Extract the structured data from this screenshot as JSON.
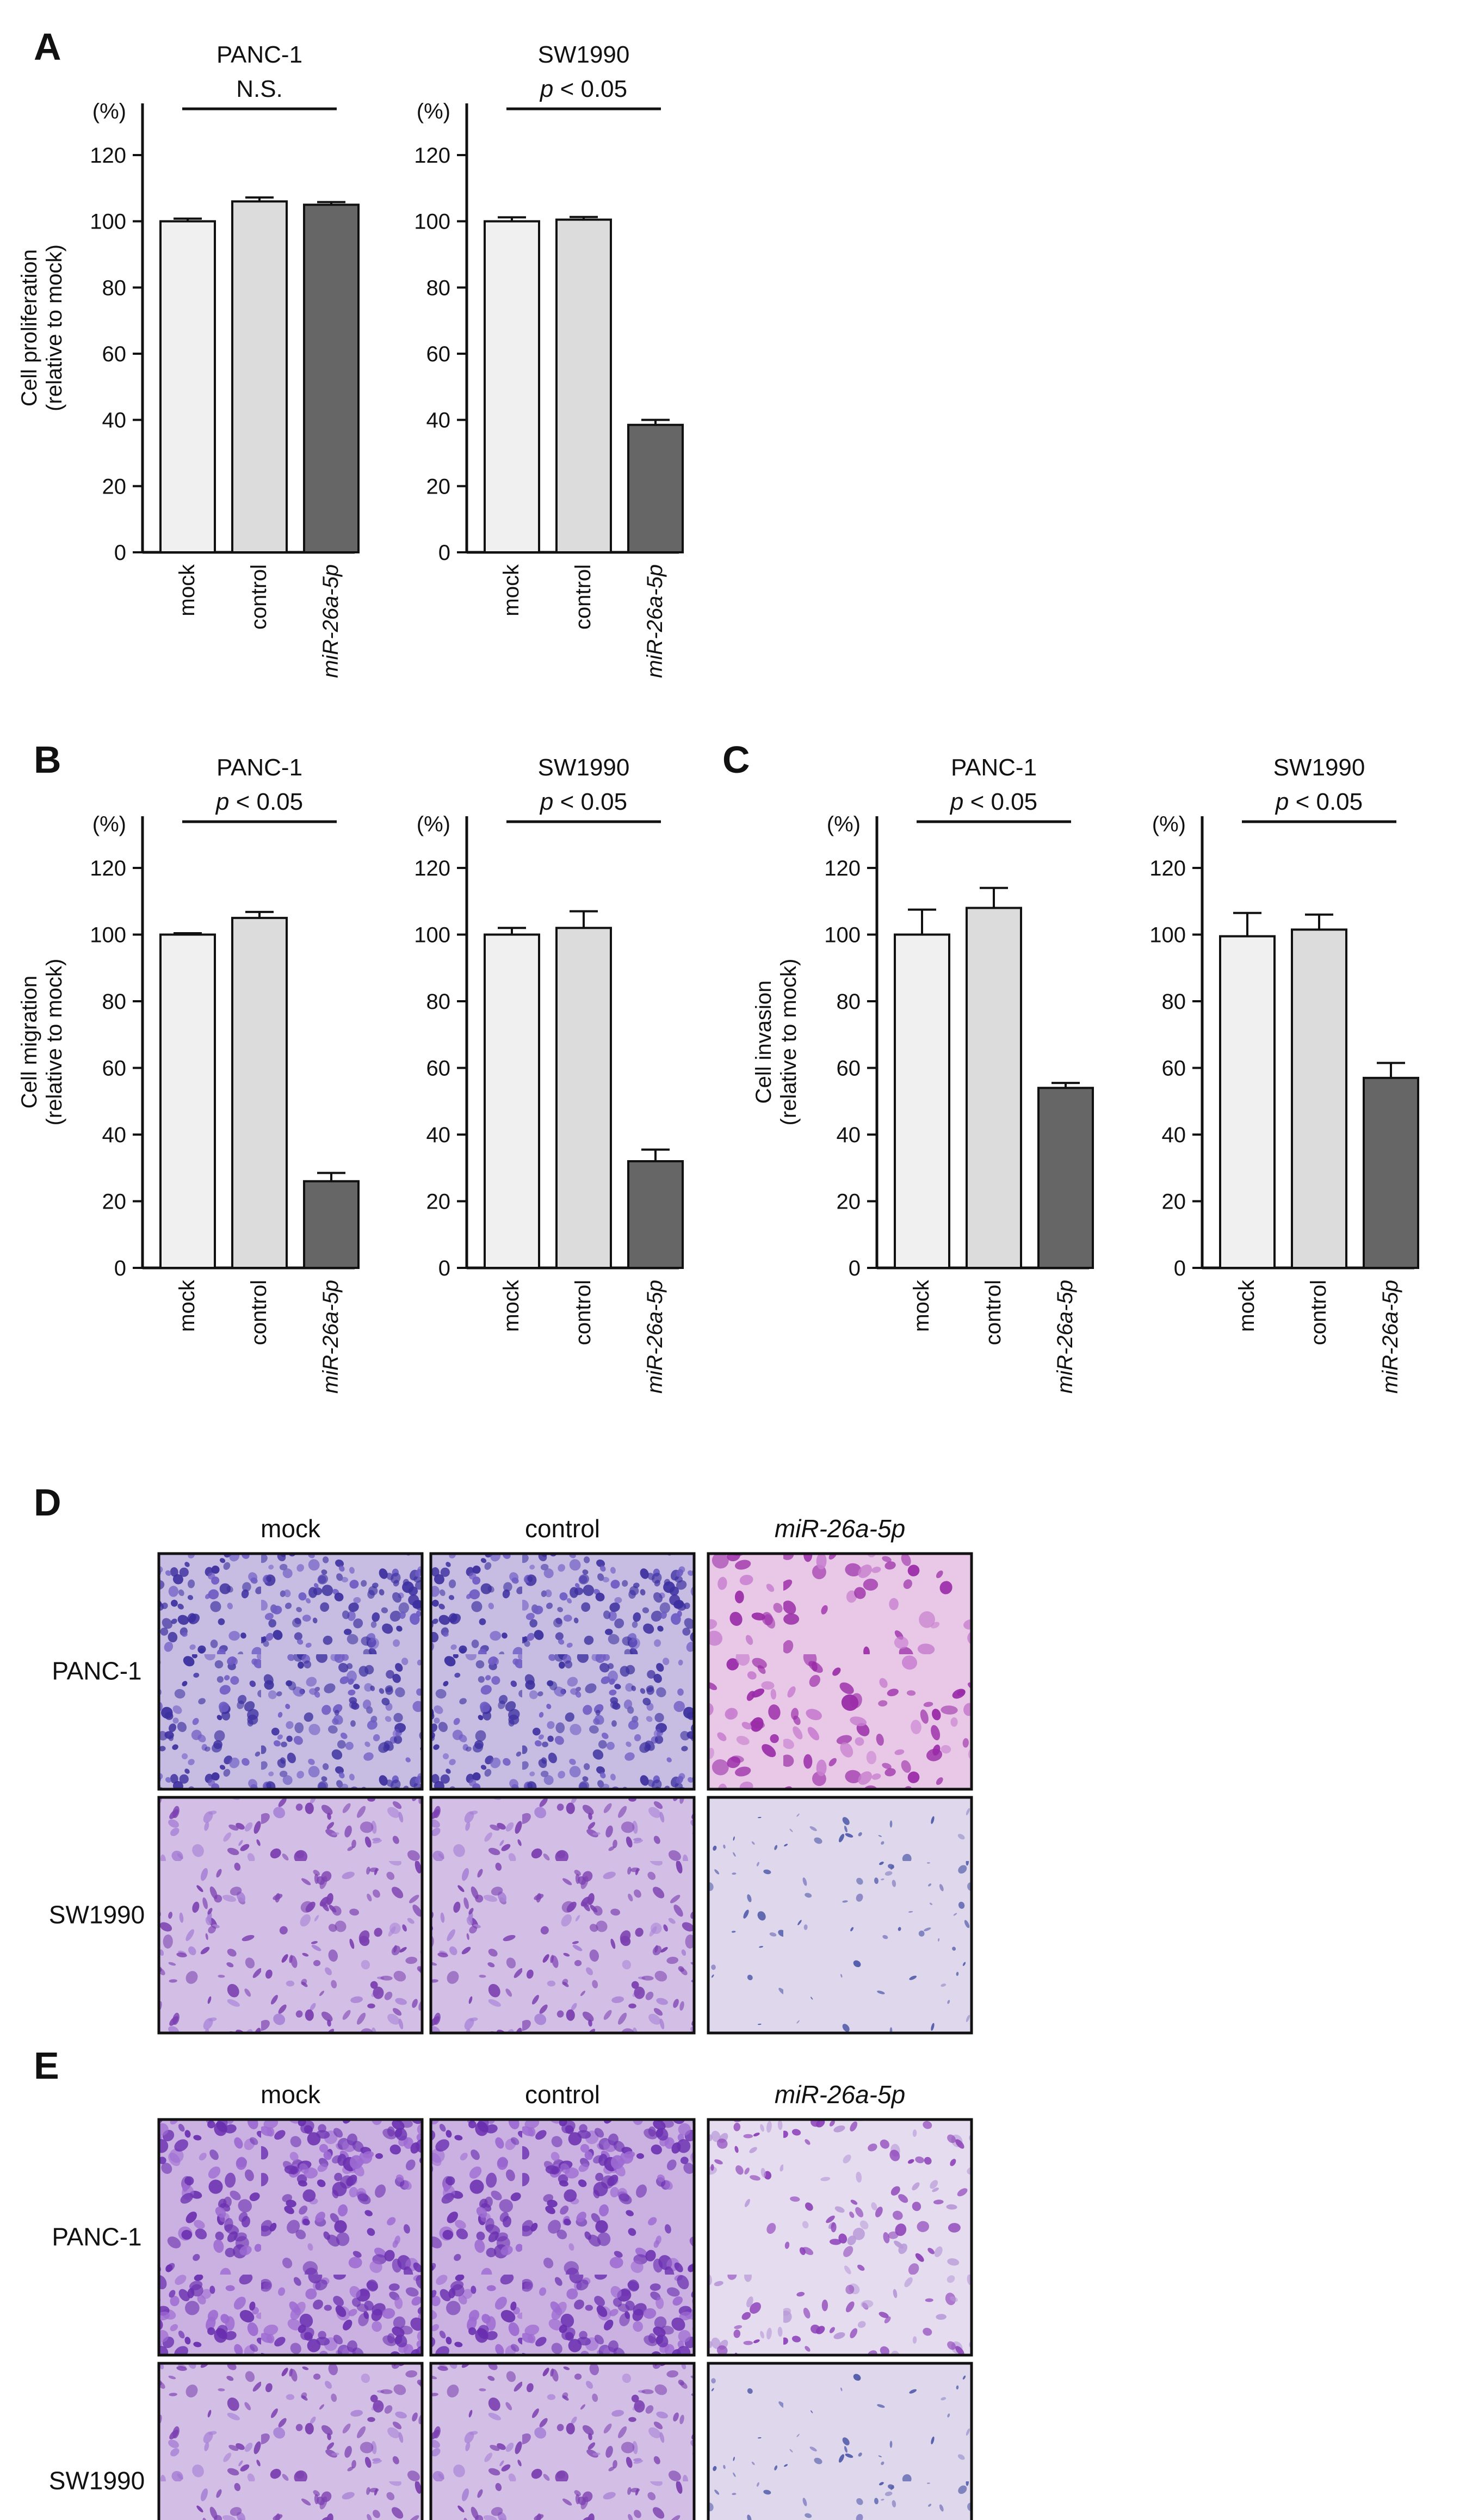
{
  "palette": {
    "bar_mock": "#f0f0f0",
    "bar_control": "#dcdcdc",
    "bar_mir": "#666666",
    "stroke": "#111111"
  },
  "panel_labels": {
    "A": "A",
    "B": "B",
    "C": "C",
    "D": "D",
    "E": "E"
  },
  "chart_data": [
    {
      "id": "A1",
      "panel": "A",
      "type": "bar",
      "title": "PANC-1",
      "ylabel": [
        "Cell proliferation",
        "(relative to mock)"
      ],
      "unit": "(%)",
      "ylim": [
        0,
        120
      ],
      "yticks": [
        "0",
        "20",
        "40",
        "60",
        "80",
        "100",
        "120"
      ],
      "categories": [
        "mock",
        "control",
        "miR-26a-5p"
      ],
      "values": [
        100,
        106,
        105
      ],
      "errors": [
        0.8,
        1.2,
        0.8
      ],
      "significance": {
        "text": "N.S.",
        "prefix": "",
        "suffix": ""
      }
    },
    {
      "id": "A2",
      "panel": "A",
      "type": "bar",
      "title": "SW1990",
      "ylabel": null,
      "unit": "(%)",
      "ylim": [
        0,
        120
      ],
      "yticks": [
        "0",
        "20",
        "40",
        "60",
        "80",
        "100",
        "120"
      ],
      "categories": [
        "mock",
        "control",
        "miR-26a-5p"
      ],
      "values": [
        100,
        100.5,
        38.5
      ],
      "errors": [
        1.2,
        0.8,
        1.5
      ],
      "significance": {
        "text": "",
        "prefix": "p",
        "suffix": " < 0.05"
      }
    },
    {
      "id": "B1",
      "panel": "B",
      "type": "bar",
      "title": "PANC-1",
      "ylabel": [
        "Cell migration",
        "(relative to mock)"
      ],
      "unit": "(%)",
      "ylim": [
        0,
        120
      ],
      "yticks": [
        "0",
        "20",
        "40",
        "60",
        "80",
        "100",
        "120"
      ],
      "categories": [
        "mock",
        "control",
        "miR-26a-5p"
      ],
      "values": [
        100,
        105,
        26
      ],
      "errors": [
        0.4,
        1.8,
        2.5
      ],
      "significance": {
        "text": "",
        "prefix": "p",
        "suffix": " < 0.05"
      }
    },
    {
      "id": "B2",
      "panel": "B",
      "type": "bar",
      "title": "SW1990",
      "ylabel": null,
      "unit": "(%)",
      "ylim": [
        0,
        120
      ],
      "yticks": [
        "0",
        "20",
        "40",
        "60",
        "80",
        "100",
        "120"
      ],
      "categories": [
        "mock",
        "control",
        "miR-26a-5p"
      ],
      "values": [
        100,
        102,
        32
      ],
      "errors": [
        2,
        5,
        3.5
      ],
      "significance": {
        "text": "",
        "prefix": "p",
        "suffix": " < 0.05"
      }
    },
    {
      "id": "C1",
      "panel": "C",
      "type": "bar",
      "title": "PANC-1",
      "ylabel": [
        "Cell invasion",
        "(relative to mock)"
      ],
      "unit": "(%)",
      "ylim": [
        0,
        120
      ],
      "yticks": [
        "0",
        "20",
        "40",
        "60",
        "80",
        "100",
        "120"
      ],
      "categories": [
        "mock",
        "control",
        "miR-26a-5p"
      ],
      "values": [
        100,
        108,
        54
      ],
      "errors": [
        7.5,
        6,
        1.5
      ],
      "significance": {
        "text": "",
        "prefix": "p",
        "suffix": " < 0.05"
      }
    },
    {
      "id": "C2",
      "panel": "C",
      "type": "bar",
      "title": "SW1990",
      "ylabel": null,
      "unit": "(%)",
      "ylim": [
        0,
        120
      ],
      "yticks": [
        "0",
        "20",
        "40",
        "60",
        "80",
        "100",
        "120"
      ],
      "categories": [
        "mock",
        "control",
        "miR-26a-5p"
      ],
      "values": [
        99.5,
        101.5,
        57
      ],
      "errors": [
        7,
        4.5,
        4.5
      ],
      "significance": {
        "text": "",
        "prefix": "p",
        "suffix": " < 0.05"
      }
    }
  ],
  "micrographs": [
    {
      "panel": "E",
      "cols": [
        "mock",
        "control",
        "miR-26a-5p"
      ],
      "rows": [
        "PANC-1",
        "SW1990"
      ]
    },
    {
      "panel": "D",
      "cols": [
        "mock",
        "control",
        "miR-26a-5p"
      ],
      "rows": [
        "PANC-1",
        "SW1990"
      ]
    }
  ]
}
